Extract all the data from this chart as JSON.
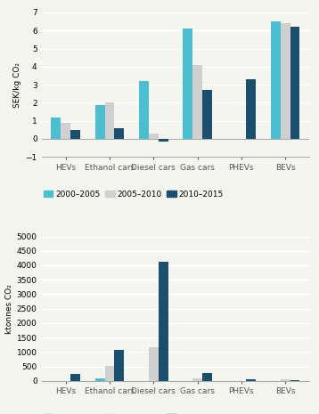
{
  "categories": [
    "HEVs",
    "Ethanol cars",
    "Diesel cars",
    "Gas cars",
    "PHEVs",
    "BEVs"
  ],
  "top_chart": {
    "ylabel": "SEK/kg CO₂",
    "ylim": [
      -1,
      7
    ],
    "yticks": [
      -1,
      0,
      1,
      2,
      3,
      4,
      5,
      6,
      7
    ],
    "series": {
      "2000-2005": [
        1.2,
        1.85,
        3.2,
        6.1,
        0.0,
        6.5
      ],
      "2005-2010": [
        0.9,
        2.0,
        0.28,
        4.1,
        0.0,
        6.4
      ],
      "2010-2015": [
        0.5,
        0.58,
        -0.15,
        2.7,
        3.3,
        6.2
      ]
    }
  },
  "bottom_chart": {
    "ylabel": "ktonnes CO₂",
    "ylim": [
      0,
      5000
    ],
    "yticks": [
      0,
      500,
      1000,
      1500,
      2000,
      2500,
      3000,
      3500,
      4000,
      4500,
      5000
    ],
    "series": {
      "2000-2005": [
        0,
        75,
        0,
        0,
        0,
        0
      ],
      "2005-2010": [
        0,
        530,
        1150,
        100,
        0,
        70
      ],
      "2010-2015": [
        230,
        1075,
        4120,
        260,
        60,
        20
      ]
    }
  },
  "colors": {
    "2000-2005": "#4bbfcf",
    "2005-2010": "#d0d0d0",
    "2010-2015": "#1a4f6e"
  },
  "legend_labels": [
    "2000–2005",
    "2005–2010",
    "2010–2015"
  ],
  "bar_width": 0.22,
  "background_color": "#f5f5ef",
  "grid_color": "#ffffff",
  "font_size": 6.5
}
